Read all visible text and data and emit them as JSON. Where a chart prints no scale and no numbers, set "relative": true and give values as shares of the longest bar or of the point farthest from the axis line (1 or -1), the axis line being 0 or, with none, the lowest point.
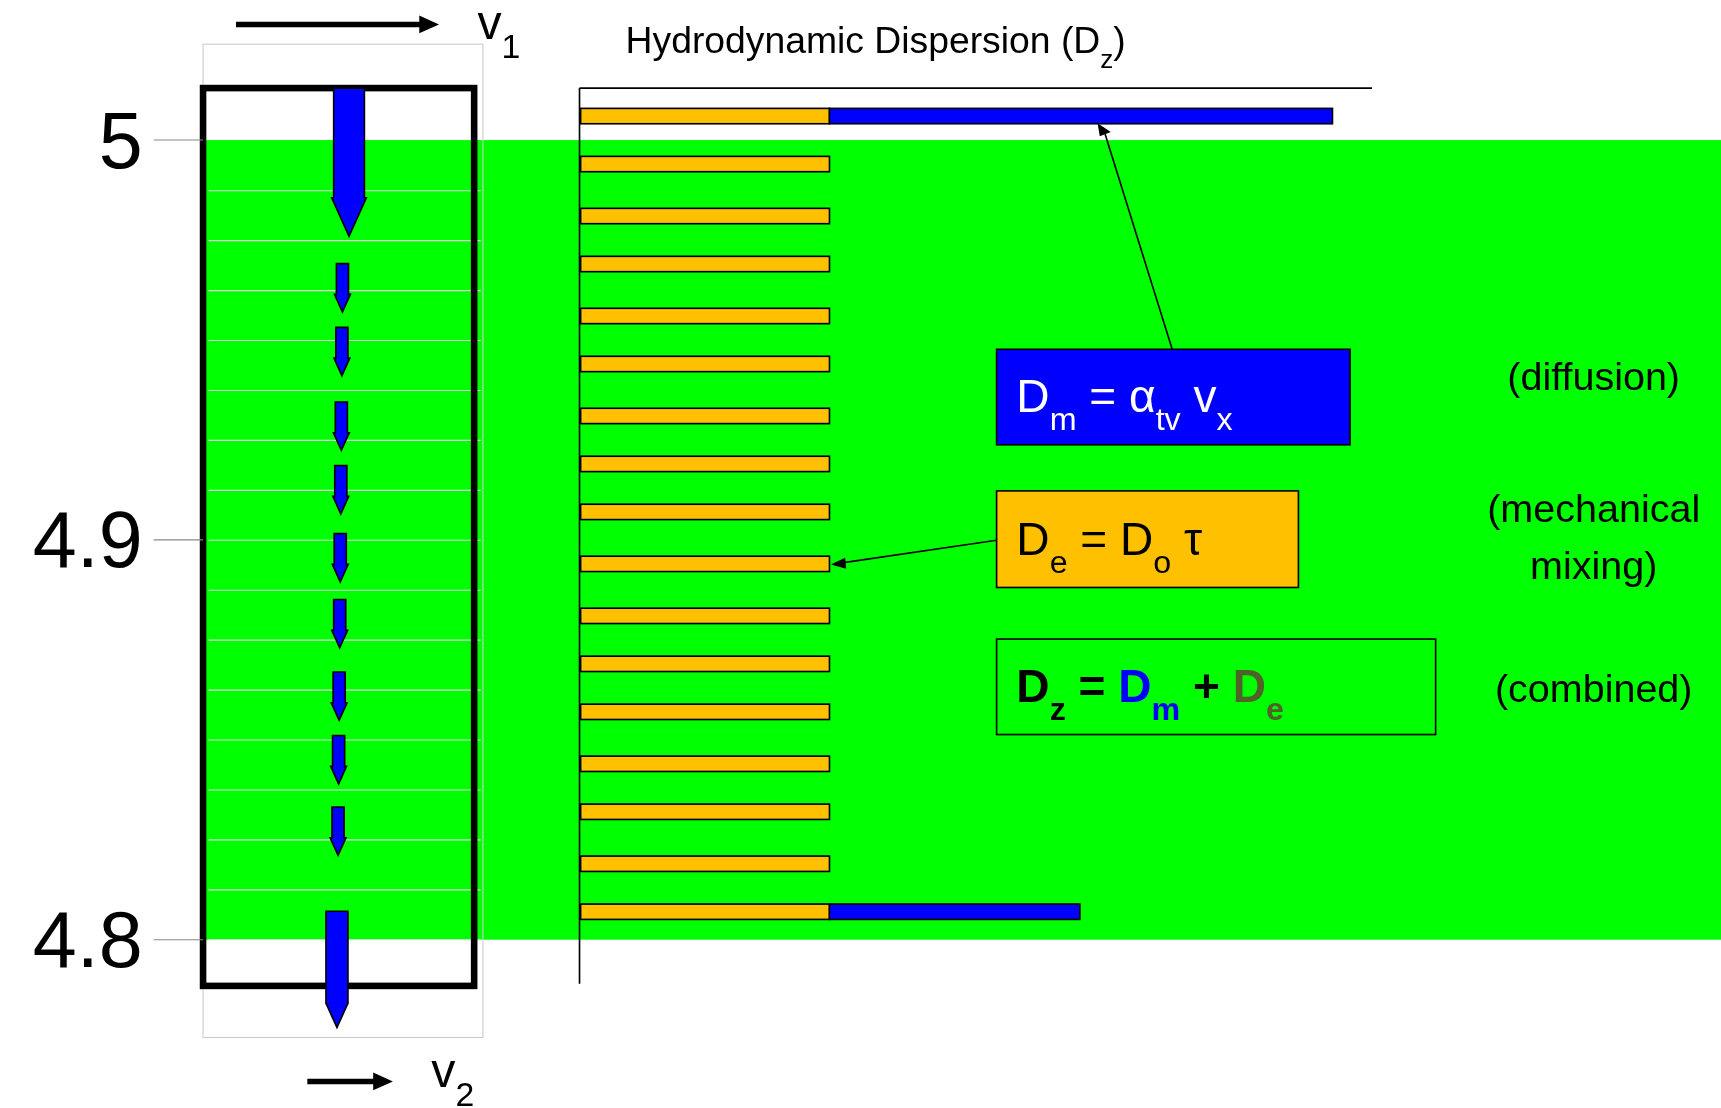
{
  "chart_data": {
    "type": "bar",
    "orientation": "horizontal",
    "stacked": true,
    "relative": true,
    "title": "Hydrodynamic Dispersion (D$_{z}$)",
    "x": [
      5.006,
      4.994,
      4.981,
      4.969,
      4.956,
      4.944,
      4.931,
      4.919,
      4.907,
      4.894,
      4.881,
      4.869,
      4.857,
      4.844,
      4.832,
      4.819,
      4.807
    ],
    "series": [
      {
        "color": "#ffc000",
        "values": [
          0.331,
          0.331,
          0.331,
          0.331,
          0.331,
          0.331,
          0.331,
          0.331,
          0.331,
          0.331,
          0.331,
          0.331,
          0.331,
          0.331,
          0.331,
          0.331,
          0.331
        ]
      },
      {
        "color": "#0000ff",
        "values": [
          0.669,
          null,
          null,
          null,
          null,
          null,
          null,
          null,
          null,
          null,
          null,
          null,
          null,
          null,
          null,
          null,
          0.333
        ]
      }
    ],
    "ylim": [
      4.789,
      5.013
    ],
    "yticks": [
      5,
      4.9,
      4.8
    ],
    "bands": [
      {
        "axis": "y",
        "from": 4.8,
        "to": 5,
        "color": "#00ff00"
      }
    ],
    "annotations": [
      "v$_{1}$",
      "v$_{2}$",
      "D$_{m}$ = α$_{tv}$ v$_{x}$",
      "D$_{e}$ = D$_{o}$ τ",
      "D$_{z}$ = D$_{m}$ + D$_{e}$",
      "(diffusion)",
      "(mechanical mixing)",
      "(combined)"
    ]
  }
}
